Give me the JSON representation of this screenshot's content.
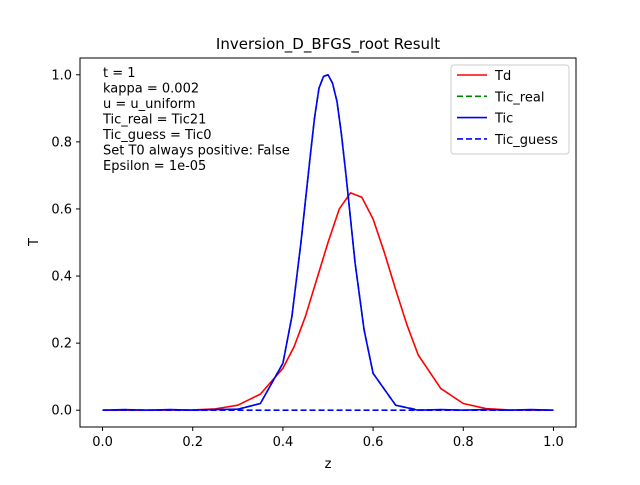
{
  "chart_data": {
    "type": "line",
    "title": "Inversion_D_BFGS_root Result",
    "xlabel": "z",
    "ylabel": "T",
    "xlim": [
      -0.05,
      1.05
    ],
    "ylim": [
      -0.05,
      1.05
    ],
    "grid": false,
    "legend_position": "top-right",
    "xticks": [
      0.0,
      0.2,
      0.4,
      0.6,
      0.8,
      1.0
    ],
    "xtick_labels": [
      "0.0",
      "0.2",
      "0.4",
      "0.6",
      "0.8",
      "1.0"
    ],
    "yticks": [
      0.0,
      0.2,
      0.4,
      0.6,
      0.8,
      1.0
    ],
    "ytick_labels": [
      "0.0",
      "0.2",
      "0.4",
      "0.6",
      "0.8",
      "1.0"
    ],
    "annotations": [
      "t = 1",
      "kappa = 0.002",
      "u = u_uniform",
      "Tic_real = Tic21",
      "Tic_guess = Tic0",
      "Set T0 always positive: False",
      "Epsilon = 1e-05"
    ],
    "series": [
      {
        "name": "Td",
        "color": "#ff0000",
        "dash": "solid",
        "x": [
          0.0,
          0.1,
          0.2,
          0.25,
          0.3,
          0.35,
          0.4,
          0.425,
          0.45,
          0.475,
          0.5,
          0.525,
          0.55,
          0.575,
          0.6,
          0.625,
          0.65,
          0.675,
          0.7,
          0.75,
          0.8,
          0.85,
          0.9,
          1.0
        ],
        "y": [
          0.0,
          0.0,
          0.001,
          0.004,
          0.015,
          0.048,
          0.125,
          0.19,
          0.28,
          0.39,
          0.5,
          0.6,
          0.648,
          0.635,
          0.57,
          0.47,
          0.36,
          0.255,
          0.165,
          0.065,
          0.02,
          0.005,
          0.001,
          0.0
        ]
      },
      {
        "name": "Tic_real",
        "color": "#008000",
        "dash": "dashed",
        "x": [
          0.0,
          0.2,
          0.3,
          0.35,
          0.4,
          0.42,
          0.44,
          0.46,
          0.47,
          0.48,
          0.49,
          0.5,
          0.51,
          0.52,
          0.53,
          0.54,
          0.56,
          0.58,
          0.6,
          0.65,
          0.7,
          0.8,
          1.0
        ],
        "y": [
          0.0,
          0.0,
          0.003,
          0.02,
          0.14,
          0.28,
          0.5,
          0.75,
          0.87,
          0.96,
          0.995,
          1.0,
          0.975,
          0.92,
          0.82,
          0.7,
          0.44,
          0.24,
          0.11,
          0.015,
          0.001,
          0.0,
          0.0
        ]
      },
      {
        "name": "Tic",
        "color": "#0000ff",
        "dash": "solid",
        "x": [
          0.0,
          0.05,
          0.1,
          0.15,
          0.2,
          0.25,
          0.3,
          0.35,
          0.4,
          0.42,
          0.44,
          0.46,
          0.47,
          0.48,
          0.49,
          0.5,
          0.51,
          0.52,
          0.53,
          0.54,
          0.56,
          0.58,
          0.6,
          0.65,
          0.7,
          0.75,
          0.8,
          0.85,
          0.9,
          0.95,
          1.0
        ],
        "y": [
          0.0,
          0.002,
          0.0,
          0.002,
          0.0,
          0.002,
          0.003,
          0.02,
          0.14,
          0.28,
          0.5,
          0.75,
          0.87,
          0.96,
          0.995,
          1.0,
          0.975,
          0.92,
          0.82,
          0.7,
          0.44,
          0.24,
          0.11,
          0.015,
          0.0,
          0.002,
          0.0,
          0.002,
          0.0,
          0.002,
          0.0
        ]
      },
      {
        "name": "Tic_guess",
        "color": "#0000ff",
        "dash": "dashed",
        "x": [
          0.0,
          1.0
        ],
        "y": [
          0.0,
          0.0
        ]
      }
    ]
  }
}
